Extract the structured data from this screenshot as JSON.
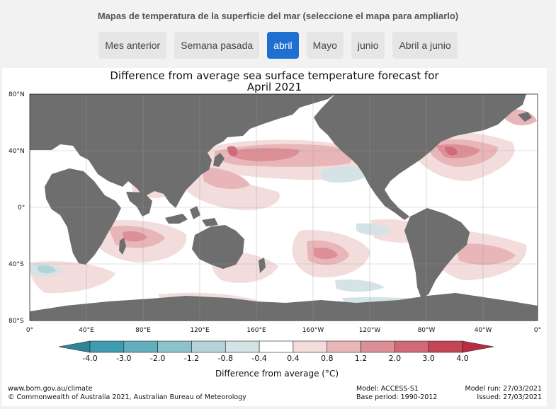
{
  "header": {
    "title": "Mapas de temperatura de la superficie del mar (seleccione el mapa para ampliarlo)"
  },
  "tabs": [
    {
      "label": "Mes anterior",
      "active": false
    },
    {
      "label": "Semana pasada",
      "active": false
    },
    {
      "label": "abril",
      "active": true
    },
    {
      "label": "Mayo",
      "active": false
    },
    {
      "label": "junio",
      "active": false
    },
    {
      "label": "Abril a junio",
      "active": false
    }
  ],
  "map": {
    "title_line1": "Difference from average sea surface temperature forecast for",
    "title_line2": "April 2021",
    "lat_labels": [
      "80°N",
      "40°N",
      "0°",
      "40°S",
      "80°S"
    ],
    "lon_labels": [
      "0°",
      "40°E",
      "80°E",
      "120°E",
      "160°E",
      "160°W",
      "120°W",
      "80°W",
      "40°W",
      "0°"
    ],
    "land_color": "#6e6e6e",
    "ocean_color": "#ffffff"
  },
  "colorbar": {
    "ticks": [
      "-4.0",
      "-3.0",
      "-2.0",
      "-1.2",
      "-0.8",
      "-0.4",
      "0.4",
      "0.8",
      "1.2",
      "2.0",
      "3.0",
      "4.0"
    ],
    "colors": [
      "#3f9bb0",
      "#62aebd",
      "#8cc2cc",
      "#b3d3d8",
      "#d4e3e5",
      "#ffffff",
      "#f3dcdc",
      "#e8b5b8",
      "#dc8f96",
      "#d06a77",
      "#c44556"
    ],
    "label": "Difference from average (°C)"
  },
  "footer": {
    "site": "www.bom.gov.au/climate",
    "copyright": "© Commonwealth of Australia 2021, Australian Bureau of Meteorology",
    "model": "Model: ACCESS-S1",
    "base_period": "Base period: 1990-2012",
    "model_run": "Model run: 27/03/2021",
    "issued": "Issued: 27/03/2021"
  }
}
